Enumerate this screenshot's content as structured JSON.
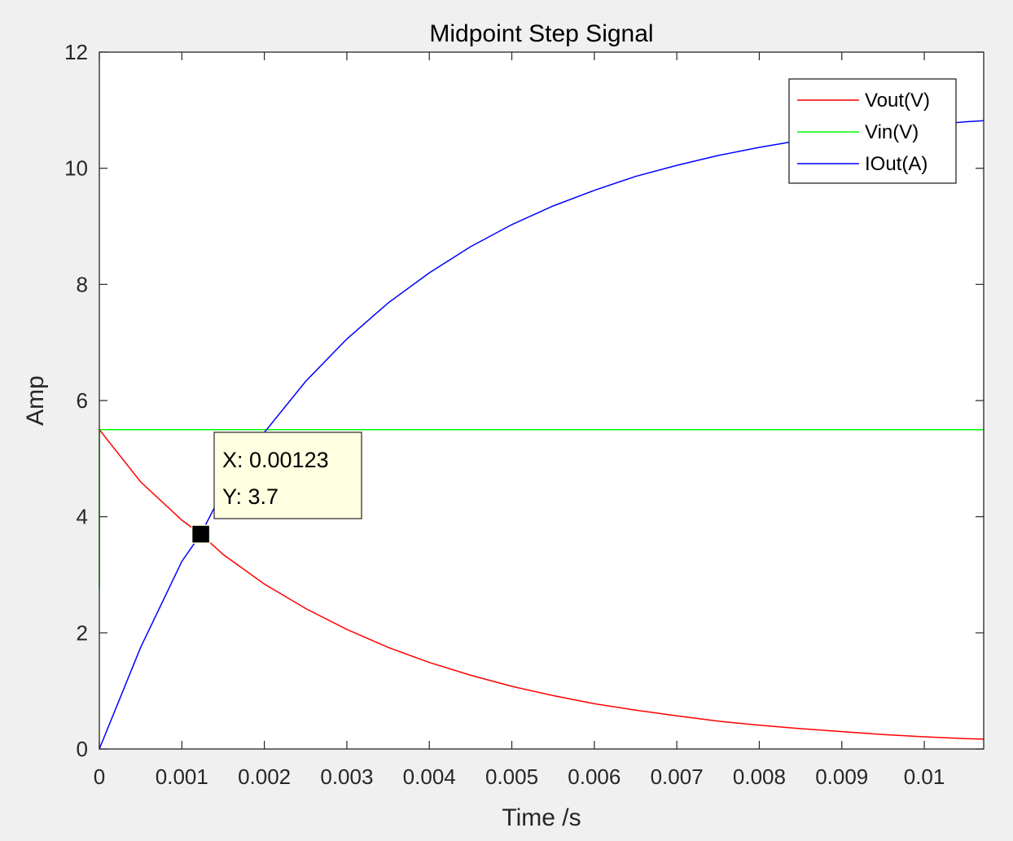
{
  "chart_data": {
    "type": "line",
    "title": "Midpoint Step Signal",
    "xlabel": "Time /s",
    "ylabel": "Amp",
    "xlim": [
      0,
      0.01072
    ],
    "ylim": [
      0,
      12
    ],
    "xticks": [
      "0",
      "0.001",
      "0.002",
      "0.003",
      "0.004",
      "0.005",
      "0.006",
      "0.007",
      "0.008",
      "0.009",
      "0.01"
    ],
    "xtick_values": [
      0,
      0.001,
      0.002,
      0.003,
      0.004,
      0.005,
      0.006,
      0.007,
      0.008,
      0.009,
      0.01
    ],
    "yticks": [
      "0",
      "2",
      "4",
      "6",
      "8",
      "10",
      "12"
    ],
    "ytick_values": [
      0,
      2,
      4,
      6,
      8,
      10,
      12
    ],
    "grid": false,
    "legend_position": "top-right",
    "series": [
      {
        "name": "Vout(V)",
        "color": "#ff0000",
        "x": [
          0,
          0.0005,
          0.001,
          0.00123,
          0.0015,
          0.002,
          0.0025,
          0.003,
          0.0035,
          0.004,
          0.0045,
          0.005,
          0.0055,
          0.006,
          0.0065,
          0.007,
          0.0075,
          0.008,
          0.0085,
          0.009,
          0.0095,
          0.01,
          0.0105,
          0.01072
        ],
        "y": [
          5.5,
          4.6,
          3.94,
          3.7,
          3.35,
          2.84,
          2.42,
          2.06,
          1.75,
          1.49,
          1.27,
          1.08,
          0.92,
          0.78,
          0.67,
          0.57,
          0.48,
          0.41,
          0.35,
          0.3,
          0.25,
          0.21,
          0.18,
          0.17
        ]
      },
      {
        "name": "Vin(V)",
        "color": "#00ff00",
        "x": [
          0,
          0,
          0,
          0.01072
        ],
        "y": [
          2.75,
          5.5,
          5.5,
          5.5
        ]
      },
      {
        "name": "IOut(A)",
        "color": "#0000ff",
        "x": [
          0,
          0.0005,
          0.001,
          0.00123,
          0.0015,
          0.002,
          0.0025,
          0.003,
          0.0035,
          0.004,
          0.0045,
          0.005,
          0.0055,
          0.006,
          0.0065,
          0.007,
          0.0075,
          0.008,
          0.0085,
          0.009,
          0.0095,
          0.01,
          0.0105,
          0.01072
        ],
        "y": [
          0,
          1.75,
          3.23,
          3.7,
          4.45,
          5.45,
          6.33,
          7.06,
          7.68,
          8.2,
          8.65,
          9.03,
          9.35,
          9.62,
          9.86,
          10.05,
          10.22,
          10.36,
          10.48,
          10.58,
          10.66,
          10.74,
          10.8,
          10.82
        ]
      }
    ],
    "datatip": {
      "x": 0.00123,
      "y": 3.7,
      "x_text": "X: 0.00123",
      "y_text": "Y: 3.7"
    }
  }
}
